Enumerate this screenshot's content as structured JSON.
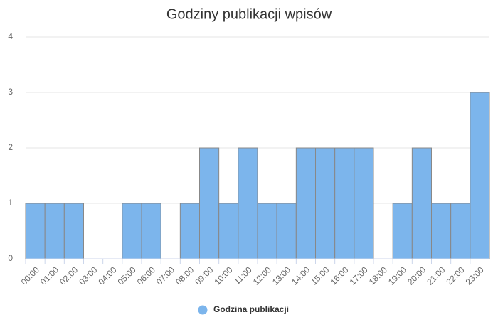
{
  "chart_data": {
    "type": "bar",
    "title": "Godziny publikacji wpisów",
    "categories": [
      "00:00",
      "01:00",
      "02:00",
      "03:00",
      "04:00",
      "05:00",
      "06:00",
      "07:00",
      "08:00",
      "09:00",
      "10:00",
      "11:00",
      "12:00",
      "13:00",
      "14:00",
      "15:00",
      "16:00",
      "17:00",
      "18:00",
      "19:00",
      "20:00",
      "21:00",
      "22:00",
      "23:00"
    ],
    "series": [
      {
        "name": "Godzina publikacji",
        "color": "#7cb5ec",
        "values": [
          1,
          1,
          1,
          0,
          0,
          1,
          1,
          0,
          1,
          2,
          1,
          2,
          1,
          1,
          2,
          2,
          2,
          2,
          0,
          1,
          2,
          1,
          1,
          3
        ]
      }
    ],
    "ylim": [
      0,
      4
    ],
    "yticks": [
      0,
      1,
      2,
      3,
      4
    ],
    "grid": true
  }
}
